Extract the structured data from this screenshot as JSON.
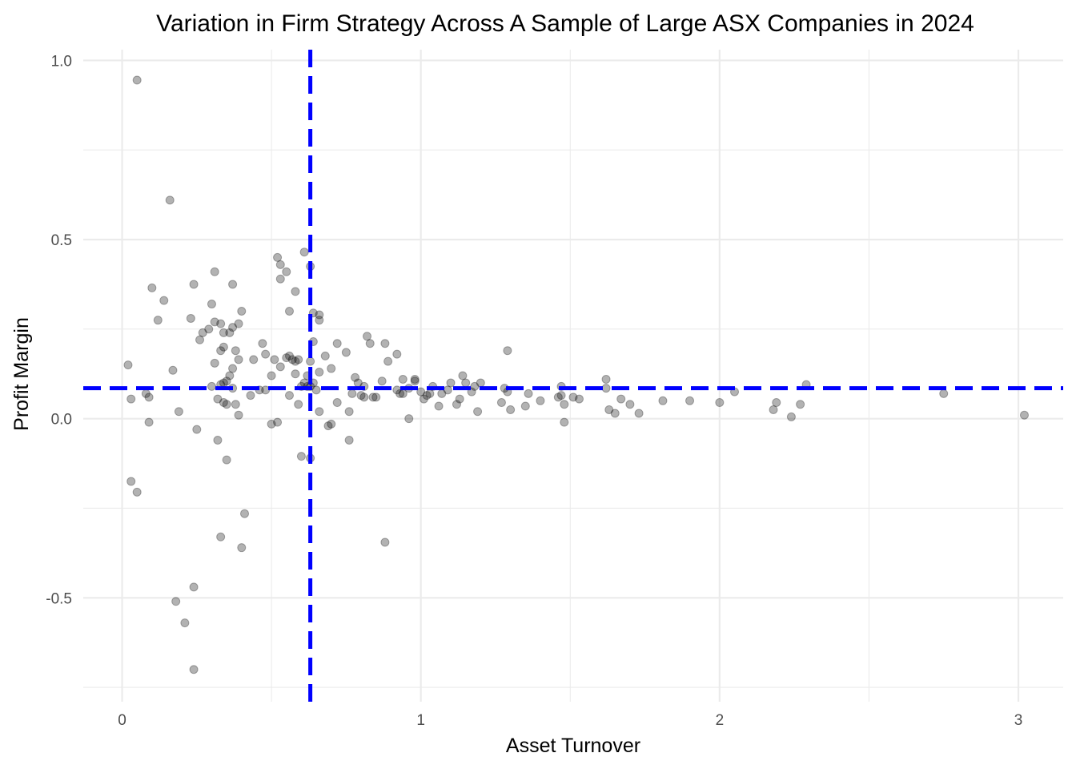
{
  "chart_data": {
    "type": "scatter",
    "title": "Variation in Firm Strategy Across A Sample of Large ASX Companies in 2024",
    "xlabel": "Asset Turnover",
    "ylabel": "Profit Margin",
    "xlim": [
      -0.13,
      3.15
    ],
    "ylim": [
      -0.79,
      1.03
    ],
    "x_ticks": [
      0,
      1,
      2,
      3
    ],
    "x_tick_labels": [
      "0",
      "1",
      "2",
      "3"
    ],
    "x_minor_ticks": [
      0.5,
      1.5,
      2.5
    ],
    "y_ticks": [
      -0.5,
      0.0,
      0.5,
      1.0
    ],
    "y_tick_labels": [
      "-0.5",
      "0.0",
      "0.5",
      "1.0"
    ],
    "y_minor_ticks": [
      -0.75,
      -0.25,
      0.25,
      0.75
    ],
    "grid": true,
    "reference_lines": {
      "vertical_x": 0.63,
      "horizontal_y": 0.085,
      "color": "#0000ff",
      "style": "dashed"
    },
    "point_color": "#000000",
    "point_alpha": 0.3,
    "points": [
      [
        0.05,
        0.945
      ],
      [
        0.16,
        0.61
      ],
      [
        0.1,
        0.365
      ],
      [
        0.14,
        0.33
      ],
      [
        0.12,
        0.275
      ],
      [
        0.24,
        0.375
      ],
      [
        0.31,
        0.41
      ],
      [
        0.37,
        0.375
      ],
      [
        0.23,
        0.28
      ],
      [
        0.3,
        0.32
      ],
      [
        0.4,
        0.3
      ],
      [
        0.31,
        0.27
      ],
      [
        0.33,
        0.265
      ],
      [
        0.39,
        0.265
      ],
      [
        0.37,
        0.255
      ],
      [
        0.27,
        0.24
      ],
      [
        0.29,
        0.25
      ],
      [
        0.34,
        0.24
      ],
      [
        0.36,
        0.24
      ],
      [
        0.26,
        0.22
      ],
      [
        0.34,
        0.2
      ],
      [
        0.33,
        0.19
      ],
      [
        0.38,
        0.19
      ],
      [
        0.31,
        0.155
      ],
      [
        0.39,
        0.165
      ],
      [
        0.37,
        0.14
      ],
      [
        0.17,
        0.135
      ],
      [
        0.36,
        0.12
      ],
      [
        0.35,
        0.105
      ],
      [
        0.34,
        0.1
      ],
      [
        0.33,
        0.095
      ],
      [
        0.3,
        0.09
      ],
      [
        0.37,
        0.085
      ],
      [
        0.02,
        0.15
      ],
      [
        0.03,
        0.055
      ],
      [
        0.08,
        0.07
      ],
      [
        0.09,
        0.06
      ],
      [
        0.09,
        -0.01
      ],
      [
        0.19,
        0.02
      ],
      [
        0.25,
        -0.03
      ],
      [
        0.32,
        0.055
      ],
      [
        0.34,
        0.045
      ],
      [
        0.35,
        0.04
      ],
      [
        0.38,
        0.04
      ],
      [
        0.39,
        0.01
      ],
      [
        0.32,
        -0.06
      ],
      [
        0.35,
        -0.115
      ],
      [
        0.03,
        -0.175
      ],
      [
        0.05,
        -0.205
      ],
      [
        0.33,
        -0.33
      ],
      [
        0.41,
        -0.265
      ],
      [
        0.4,
        -0.36
      ],
      [
        0.18,
        -0.51
      ],
      [
        0.21,
        -0.57
      ],
      [
        0.24,
        -0.47
      ],
      [
        0.24,
        -0.7
      ],
      [
        0.52,
        0.45
      ],
      [
        0.53,
        0.43
      ],
      [
        0.55,
        0.41
      ],
      [
        0.53,
        0.39
      ],
      [
        0.61,
        0.465
      ],
      [
        0.63,
        0.425
      ],
      [
        0.58,
        0.355
      ],
      [
        0.56,
        0.3
      ],
      [
        0.64,
        0.295
      ],
      [
        0.66,
        0.29
      ],
      [
        0.66,
        0.275
      ],
      [
        0.47,
        0.21
      ],
      [
        0.48,
        0.18
      ],
      [
        0.51,
        0.165
      ],
      [
        0.53,
        0.145
      ],
      [
        0.55,
        0.17
      ],
      [
        0.56,
        0.175
      ],
      [
        0.57,
        0.165
      ],
      [
        0.58,
        0.16
      ],
      [
        0.59,
        0.165
      ],
      [
        0.63,
        0.16
      ],
      [
        0.64,
        0.215
      ],
      [
        0.68,
        0.175
      ],
      [
        0.72,
        0.21
      ],
      [
        0.44,
        0.165
      ],
      [
        0.46,
        0.08
      ],
      [
        0.48,
        0.08
      ],
      [
        0.5,
        0.12
      ],
      [
        0.56,
        0.065
      ],
      [
        0.58,
        0.125
      ],
      [
        0.6,
        0.09
      ],
      [
        0.61,
        0.1
      ],
      [
        0.62,
        0.09
      ],
      [
        0.62,
        0.12
      ],
      [
        0.63,
        0.09
      ],
      [
        0.64,
        0.1
      ],
      [
        0.65,
        0.08
      ],
      [
        0.66,
        0.13
      ],
      [
        0.59,
        0.04
      ],
      [
        0.43,
        0.065
      ],
      [
        0.5,
        -0.015
      ],
      [
        0.52,
        -0.01
      ],
      [
        0.6,
        -0.105
      ],
      [
        0.63,
        -0.11
      ],
      [
        0.66,
        0.02
      ],
      [
        0.69,
        -0.02
      ],
      [
        0.7,
        -0.015
      ],
      [
        0.7,
        0.14
      ],
      [
        0.72,
        0.045
      ],
      [
        0.75,
        0.185
      ],
      [
        0.76,
        0.02
      ],
      [
        0.76,
        -0.06
      ],
      [
        0.77,
        0.07
      ],
      [
        0.78,
        0.115
      ],
      [
        0.79,
        0.1
      ],
      [
        0.8,
        0.065
      ],
      [
        0.81,
        0.09
      ],
      [
        0.81,
        0.06
      ],
      [
        0.82,
        0.23
      ],
      [
        0.83,
        0.21
      ],
      [
        0.84,
        0.06
      ],
      [
        0.85,
        0.06
      ],
      [
        0.87,
        0.105
      ],
      [
        0.88,
        0.21
      ],
      [
        0.89,
        0.16
      ],
      [
        0.92,
        0.18
      ],
      [
        0.92,
        0.08
      ],
      [
        0.93,
        0.07
      ],
      [
        0.94,
        0.07
      ],
      [
        0.94,
        0.11
      ],
      [
        0.96,
        0.085
      ],
      [
        0.96,
        0.0
      ],
      [
        0.98,
        0.105
      ],
      [
        0.98,
        0.11
      ],
      [
        1.0,
        0.075
      ],
      [
        1.01,
        0.055
      ],
      [
        1.02,
        0.065
      ],
      [
        1.03,
        0.07
      ],
      [
        1.04,
        0.09
      ],
      [
        1.06,
        0.035
      ],
      [
        1.07,
        0.07
      ],
      [
        1.09,
        0.08
      ],
      [
        1.1,
        0.1
      ],
      [
        1.12,
        0.04
      ],
      [
        1.13,
        0.055
      ],
      [
        1.14,
        0.12
      ],
      [
        1.15,
        0.1
      ],
      [
        1.17,
        0.075
      ],
      [
        1.18,
        0.09
      ],
      [
        1.19,
        0.02
      ],
      [
        1.2,
        0.1
      ],
      [
        1.29,
        0.19
      ],
      [
        1.27,
        0.045
      ],
      [
        1.28,
        0.085
      ],
      [
        1.29,
        0.075
      ],
      [
        1.3,
        0.025
      ],
      [
        1.35,
        0.035
      ],
      [
        1.36,
        0.07
      ],
      [
        1.4,
        0.05
      ],
      [
        1.46,
        0.06
      ],
      [
        1.47,
        0.065
      ],
      [
        1.47,
        0.09
      ],
      [
        1.48,
        0.04
      ],
      [
        1.48,
        -0.01
      ],
      [
        1.51,
        0.06
      ],
      [
        1.53,
        0.055
      ],
      [
        1.62,
        0.11
      ],
      [
        1.62,
        0.085
      ],
      [
        1.63,
        0.025
      ],
      [
        1.65,
        0.015
      ],
      [
        1.67,
        0.055
      ],
      [
        1.7,
        0.04
      ],
      [
        1.73,
        0.015
      ],
      [
        1.81,
        0.05
      ],
      [
        1.9,
        0.05
      ],
      [
        2.0,
        0.045
      ],
      [
        2.05,
        0.075
      ],
      [
        2.18,
        0.025
      ],
      [
        2.19,
        0.045
      ],
      [
        2.24,
        0.005
      ],
      [
        2.27,
        0.04
      ],
      [
        2.29,
        0.095
      ],
      [
        2.75,
        0.07
      ],
      [
        3.02,
        0.01
      ],
      [
        0.88,
        -0.345
      ]
    ]
  }
}
